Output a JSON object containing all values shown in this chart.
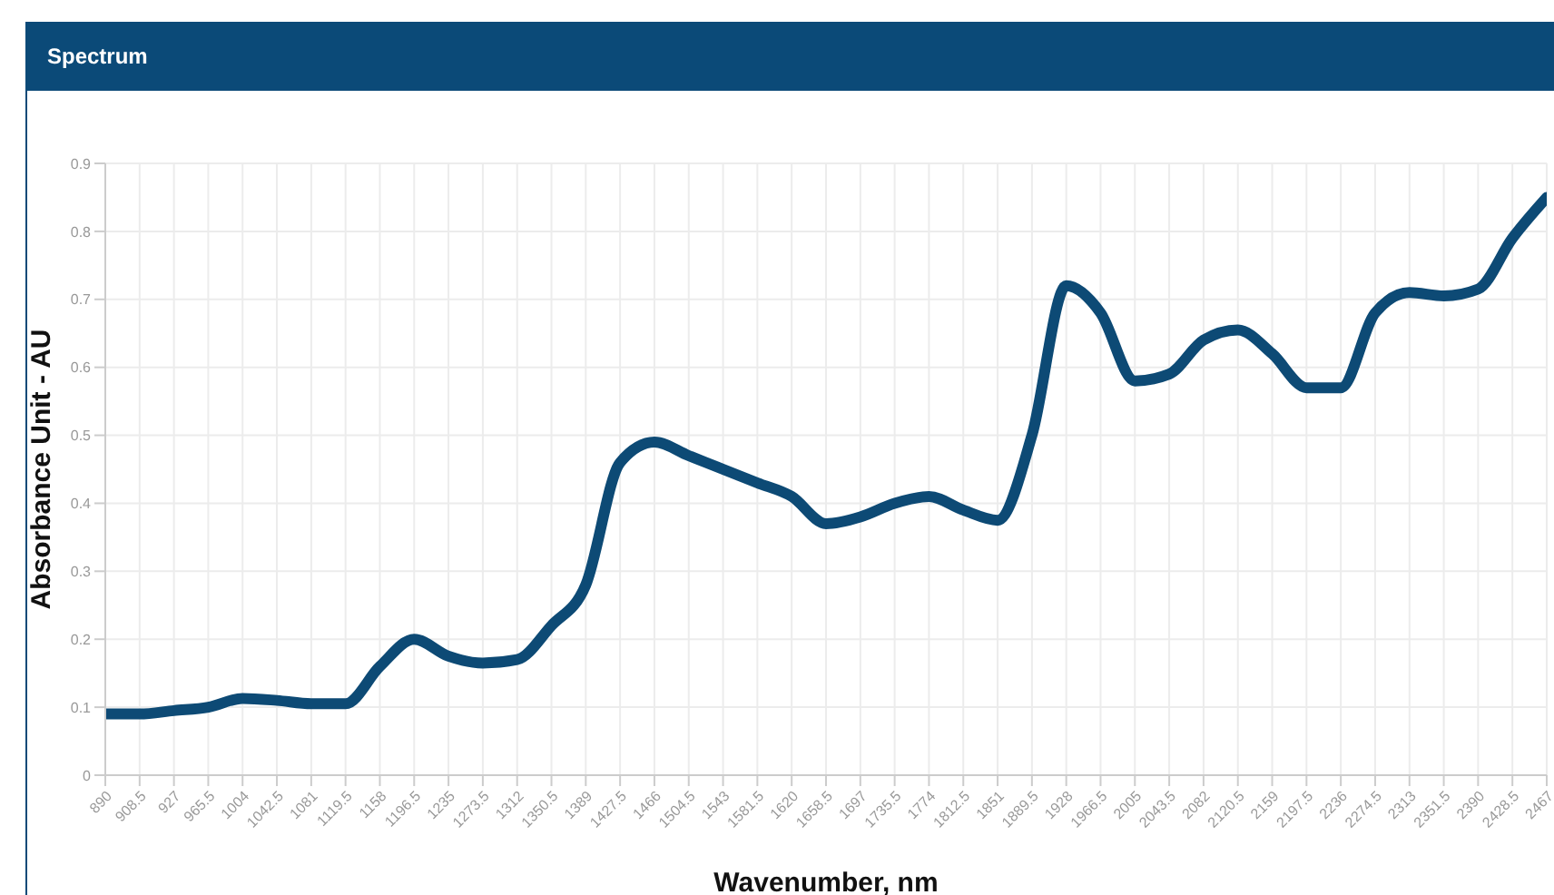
{
  "chart_data": {
    "type": "line",
    "title": "Spectrum",
    "xlabel": "Wavenumber, nm",
    "ylabel": "Absorbance Unit - AU",
    "categories": [
      "890",
      "908.5",
      "927",
      "965.5",
      "1004",
      "1042.5",
      "1081",
      "1119.5",
      "1158",
      "1196.5",
      "1235",
      "1273.5",
      "1312",
      "1350.5",
      "1389",
      "1427.5",
      "1466",
      "1504.5",
      "1543",
      "1581.5",
      "1620",
      "1658.5",
      "1697",
      "1735.5",
      "1774",
      "1812.5",
      "1851",
      "1889.5",
      "1928",
      "1966.5",
      "2005",
      "2043.5",
      "2082",
      "2120.5",
      "2159",
      "2197.5",
      "2236",
      "2274.5",
      "2313",
      "2351.5",
      "2390",
      "2428.5",
      "2467"
    ],
    "series": [
      {
        "color": "#0d4a75",
        "values": [
          0.09,
          0.09,
          0.095,
          0.1,
          0.113,
          0.11,
          0.105,
          0.105,
          0.16,
          0.2,
          0.175,
          0.165,
          0.17,
          0.22,
          0.28,
          0.46,
          0.49,
          0.47,
          0.45,
          0.43,
          0.41,
          0.37,
          0.38,
          0.4,
          0.41,
          0.39,
          0.375,
          0.5,
          0.72,
          0.68,
          0.58,
          0.59,
          0.64,
          0.655,
          0.62,
          0.57,
          0.57,
          0.68,
          0.71,
          0.705,
          0.715,
          0.79,
          0.85
        ]
      }
    ],
    "ylim": [
      0,
      0.9
    ],
    "yticks": [
      0,
      0.1,
      0.2,
      0.3,
      0.4,
      0.5,
      0.6,
      0.7,
      0.8,
      0.9
    ],
    "grid": true,
    "marker": "none",
    "line_style": "solid"
  }
}
